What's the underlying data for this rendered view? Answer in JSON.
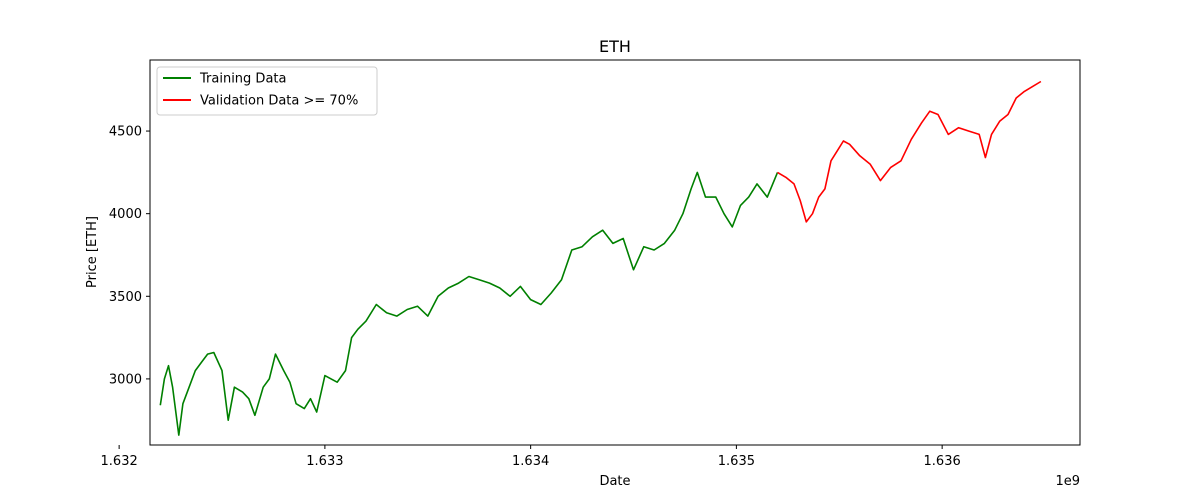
{
  "chart_data": {
    "type": "line",
    "title": "ETH",
    "xlabel": "Date",
    "ylabel": "Price [ETH]",
    "x_offset_label": "1e9",
    "xlim": [
      1.63215,
      1.63667
    ],
    "ylim": [
      2600,
      4930
    ],
    "xticks": [
      1.632,
      1.633,
      1.634,
      1.635,
      1.636
    ],
    "xtick_labels": [
      "1.632",
      "1.633",
      "1.634",
      "1.635",
      "1.636"
    ],
    "yticks": [
      3000,
      3500,
      4000,
      4500
    ],
    "ytick_labels": [
      "3000",
      "3500",
      "4000",
      "4500"
    ],
    "grid": false,
    "legend_position": "top-left",
    "series": [
      {
        "name": "Training Data",
        "color": "#008000",
        "x": [
          1.6322,
          1.63222,
          1.63224,
          1.63226,
          1.63229,
          1.63231,
          1.63234,
          1.63237,
          1.6324,
          1.63243,
          1.63246,
          1.6325,
          1.63253,
          1.63256,
          1.6326,
          1.63263,
          1.63266,
          1.6327,
          1.63273,
          1.63276,
          1.6328,
          1.63283,
          1.63286,
          1.6329,
          1.63293,
          1.63296,
          1.633,
          1.63303,
          1.63306,
          1.6331,
          1.63313,
          1.63316,
          1.6332,
          1.63325,
          1.6333,
          1.63335,
          1.6334,
          1.63345,
          1.6335,
          1.63355,
          1.6336,
          1.63365,
          1.6337,
          1.63375,
          1.6338,
          1.63385,
          1.6339,
          1.63395,
          1.634,
          1.63405,
          1.6341,
          1.63415,
          1.6342,
          1.63425,
          1.6343,
          1.63435,
          1.6344,
          1.63445,
          1.6345,
          1.63455,
          1.6346,
          1.63465,
          1.6347,
          1.63474,
          1.63478,
          1.63481,
          1.63485,
          1.6349,
          1.63494,
          1.63498,
          1.63502,
          1.63506,
          1.6351,
          1.63515,
          1.6352
        ],
        "y": [
          2840,
          3000,
          3080,
          2950,
          2660,
          2850,
          2950,
          3050,
          3100,
          3150,
          3160,
          3050,
          2750,
          2950,
          2920,
          2880,
          2780,
          2950,
          3000,
          3150,
          3050,
          2980,
          2850,
          2820,
          2880,
          2800,
          3020,
          3000,
          2980,
          3050,
          3250,
          3300,
          3350,
          3450,
          3400,
          3380,
          3420,
          3440,
          3380,
          3500,
          3550,
          3580,
          3620,
          3600,
          3580,
          3550,
          3500,
          3560,
          3480,
          3450,
          3520,
          3600,
          3780,
          3800,
          3860,
          3900,
          3820,
          3850,
          3660,
          3800,
          3780,
          3820,
          3900,
          4000,
          4150,
          4250,
          4100,
          4100,
          4000,
          3920,
          4050,
          4100,
          4180,
          4100,
          4250
        ]
      },
      {
        "name": "Validation Data >= 70%",
        "color": "#ff0000",
        "x": [
          1.6352,
          1.63524,
          1.63528,
          1.63531,
          1.63534,
          1.63537,
          1.6354,
          1.63543,
          1.63546,
          1.63549,
          1.63552,
          1.63555,
          1.6356,
          1.63565,
          1.6357,
          1.63575,
          1.6358,
          1.63585,
          1.6359,
          1.63594,
          1.63598,
          1.63603,
          1.63608,
          1.63613,
          1.63618,
          1.63621,
          1.63624,
          1.63628,
          1.63632,
          1.63636,
          1.6364,
          1.63644,
          1.63648
        ],
        "y": [
          4250,
          4220,
          4180,
          4080,
          3950,
          4000,
          4100,
          4150,
          4320,
          4380,
          4440,
          4420,
          4350,
          4300,
          4200,
          4280,
          4320,
          4450,
          4550,
          4620,
          4600,
          4480,
          4520,
          4500,
          4480,
          4340,
          4480,
          4560,
          4600,
          4700,
          4740,
          4770,
          4800
        ]
      }
    ]
  }
}
